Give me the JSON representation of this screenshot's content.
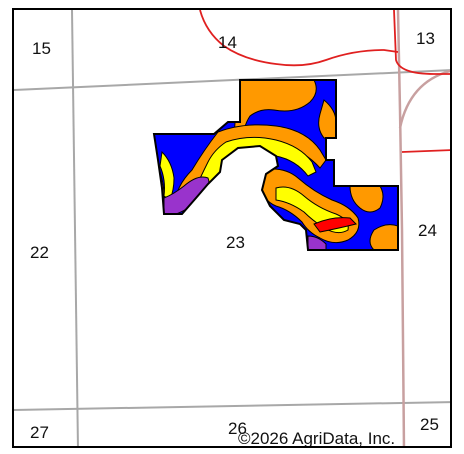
{
  "map": {
    "sections": {
      "s15": "15",
      "s14": "14",
      "s13": "13",
      "s22": "22",
      "s23": "23",
      "s24": "24",
      "s27": "27",
      "s26": "26",
      "s25": "25"
    },
    "copyright": "©2026 AgriData, Inc.",
    "colors": {
      "section_line": "#a8a8a8",
      "road": "#e02020",
      "highway": "#c8a0a0",
      "zone_blue": "#0000ff",
      "zone_orange": "#ff9900",
      "zone_yellow": "#ffff00",
      "zone_purple": "#9933cc",
      "zone_red": "#ff0000",
      "outline": "#000000"
    }
  }
}
